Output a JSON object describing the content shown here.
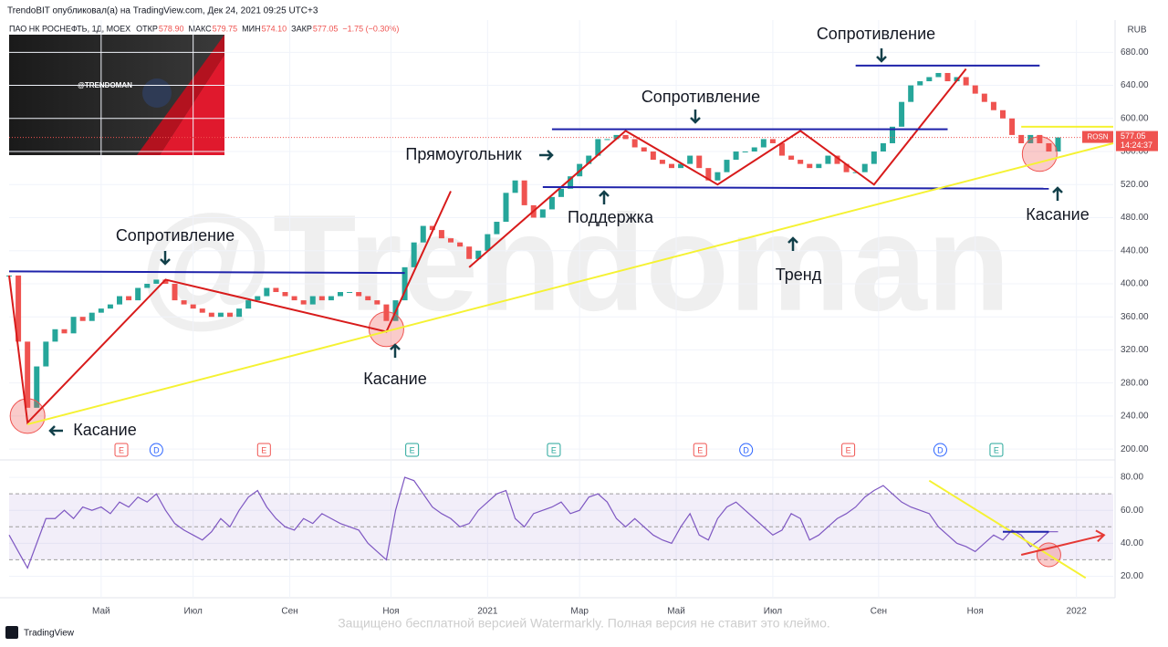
{
  "header": {
    "text": "TrendoBIT опубликовал(а) на TradingView.com, Дек 24, 2021 09:25 UTC+3"
  },
  "legend": {
    "symbol": "ПАО НК РОСНЕФТЬ, 1Д, MOEX",
    "items": [
      {
        "label": "ОТКР",
        "value": "578.90"
      },
      {
        "label": "МАКС",
        "value": "579.75"
      },
      {
        "label": "МИН",
        "value": "574.10"
      },
      {
        "label": "ЗАКР",
        "value": "577.05"
      }
    ],
    "change": "−1.75 (−0.30%)"
  },
  "currency": "RUB",
  "ticker": "ROSN",
  "countdown": "14:24:37",
  "thumbnail": {
    "title": "@TRENDOMAN"
  },
  "watermark": "@Trendoman",
  "footer": {
    "brand": "TradingView",
    "notice": "Защищено бесплатной версией Watermarkly. Полная версия не ставит это клеймо."
  },
  "chart_data": [
    {
      "type": "candlestick",
      "up_color": "#26a69a",
      "down_color": "#ef5350",
      "values": [
        410,
        330,
        250,
        300,
        330,
        345,
        340,
        360,
        355,
        365,
        370,
        375,
        385,
        380,
        395,
        400,
        405,
        400,
        380,
        375,
        370,
        365,
        360,
        365,
        360,
        370,
        380,
        385,
        395,
        390,
        385,
        380,
        375,
        385,
        380,
        385,
        390,
        390,
        385,
        380,
        375,
        355,
        380,
        420,
        450,
        470,
        465,
        455,
        450,
        445,
        430,
        440,
        460,
        475,
        510,
        525,
        495,
        480,
        490,
        505,
        515,
        530,
        545,
        555,
        575,
        575,
        580,
        575,
        565,
        560,
        550,
        545,
        540,
        545,
        555,
        540,
        525,
        535,
        550,
        560,
        560,
        565,
        575,
        570,
        555,
        550,
        545,
        540,
        545,
        555,
        545,
        535,
        535,
        545,
        560,
        570,
        590,
        620,
        640,
        645,
        650,
        655,
        645,
        650,
        640,
        630,
        620,
        610,
        600,
        580,
        570,
        580,
        570,
        560,
        577.05
      ],
      "xlim": [
        0,
        120
      ],
      "ylim": [
        188,
        719
      ],
      "grid": true,
      "xticks": [
        {
          "value": 10,
          "label": "Май"
        },
        {
          "value": 20,
          "label": "Июл"
        },
        {
          "value": 30.5,
          "label": "Сен"
        },
        {
          "value": 41.5,
          "label": "Ноя"
        },
        {
          "value": 52,
          "label": "2021"
        },
        {
          "value": 62,
          "label": "Мар"
        },
        {
          "value": 72.5,
          "label": "Май"
        },
        {
          "value": 83,
          "label": "Июл"
        },
        {
          "value": 94.5,
          "label": "Сен"
        },
        {
          "value": 105,
          "label": "Ноя"
        },
        {
          "value": 116,
          "label": "2022"
        }
      ],
      "yticks": [
        {
          "value": 200,
          "label": "200.00"
        },
        {
          "value": 240,
          "label": "240.00"
        },
        {
          "value": 280,
          "label": "280.00"
        },
        {
          "value": 320,
          "label": "320.00"
        },
        {
          "value": 360,
          "label": "360.00"
        },
        {
          "value": 400,
          "label": "400.00"
        },
        {
          "value": 440,
          "label": "440.00"
        },
        {
          "value": 480,
          "label": "480.00"
        },
        {
          "value": 520,
          "label": "520.00"
        },
        {
          "value": 560,
          "label": "560.00"
        },
        {
          "value": 600,
          "label": "600.00"
        },
        {
          "value": 640,
          "label": "640.00"
        },
        {
          "value": 680,
          "label": "680.00"
        }
      ],
      "drawings": [
        {
          "color": "#1e22aa",
          "x": [
            0,
            43
          ],
          "y": [
            415,
            413
          ]
        },
        {
          "color": "#d81b1b",
          "x": [
            0,
            2,
            17,
            41,
            48
          ],
          "y": [
            410,
            232,
            405,
            342,
            512
          ]
        },
        {
          "color": "#d81b1b",
          "x": [
            50,
            67,
            77,
            86,
            94,
            104
          ],
          "y": [
            420,
            585,
            520,
            585,
            520,
            660
          ]
        },
        {
          "color": "#1e22aa",
          "x": [
            59,
            102
          ],
          "y": [
            587,
            587
          ]
        },
        {
          "color": "#1e22aa",
          "x": [
            58,
            113
          ],
          "y": [
            517,
            515
          ]
        },
        {
          "color": "#1e22aa",
          "x": [
            92,
            112
          ],
          "y": [
            664,
            664
          ]
        },
        {
          "color": "#f5f233",
          "x": [
            2,
            120
          ],
          "y": [
            230,
            570
          ]
        },
        {
          "color": "#f5f233",
          "x": [
            110,
            120
          ],
          "y": [
            590,
            590
          ]
        }
      ],
      "highlights": [
        {
          "x": 2,
          "y": 240
        },
        {
          "x": 41,
          "y": 345
        },
        {
          "x": 112,
          "y": 557
        }
      ],
      "annotations": [
        "Сопротивление",
        "Касание",
        "Касание",
        "Прямоугольник",
        "Сопротивление",
        "Поддержка",
        "Тренд",
        "Сопротивление",
        "Касание"
      ],
      "events": [
        {
          "label": "E",
          "x": 12.2,
          "color": "#ef5350"
        },
        {
          "label": "D",
          "x": 16,
          "color": "#2962ff"
        },
        {
          "label": "E",
          "x": 27.7,
          "color": "#ef5350"
        },
        {
          "label": "E",
          "x": 43.8,
          "color": "#26a69a"
        },
        {
          "label": "E",
          "x": 59.2,
          "color": "#26a69a"
        },
        {
          "label": "E",
          "x": 75.1,
          "color": "#ef5350"
        },
        {
          "label": "D",
          "x": 80.1,
          "color": "#2962ff"
        },
        {
          "label": "E",
          "x": 91.2,
          "color": "#ef5350"
        },
        {
          "label": "D",
          "x": 101.2,
          "color": "#2962ff"
        },
        {
          "label": "E",
          "x": 107.3,
          "color": "#26a69a"
        }
      ]
    },
    {
      "type": "line",
      "color": "#7e57c2",
      "values": [
        45,
        35,
        25,
        40,
        55,
        55,
        60,
        55,
        62,
        60,
        62,
        58,
        65,
        62,
        68,
        65,
        70,
        60,
        52,
        48,
        45,
        42,
        47,
        55,
        50,
        60,
        68,
        72,
        62,
        55,
        50,
        48,
        55,
        52,
        58,
        55,
        52,
        50,
        48,
        40,
        35,
        30,
        60,
        80,
        78,
        70,
        62,
        58,
        55,
        50,
        52,
        60,
        65,
        70,
        72,
        55,
        50,
        58,
        60,
        62,
        65,
        58,
        60,
        68,
        70,
        65,
        55,
        50,
        55,
        50,
        45,
        42,
        40,
        50,
        58,
        45,
        42,
        55,
        62,
        65,
        60,
        55,
        50,
        45,
        48,
        58,
        55,
        42,
        45,
        50,
        55,
        58,
        62,
        68,
        72,
        75,
        70,
        65,
        62,
        60,
        58,
        50,
        45,
        40,
        38,
        35,
        40,
        45,
        42,
        48,
        45,
        38,
        42,
        47,
        47
      ],
      "xlim": [
        0,
        120
      ],
      "ylim": [
        7,
        90
      ],
      "band": [
        30,
        70
      ],
      "levels": [
        30,
        50,
        70
      ],
      "yticks": [
        {
          "value": 20,
          "label": "20.00"
        },
        {
          "value": 40,
          "label": "40.00"
        },
        {
          "value": 60,
          "label": "60.00"
        },
        {
          "value": 80,
          "label": "80.00"
        }
      ],
      "drawings": [
        {
          "color": "#f5f233",
          "x": [
            100,
            117
          ],
          "y": [
            78,
            19
          ]
        },
        {
          "color": "#1e22aa",
          "x": [
            108,
            113
          ],
          "y": [
            47,
            47
          ]
        },
        {
          "color": "#e53935",
          "x": [
            110,
            119
          ],
          "y": [
            33,
            45
          ]
        }
      ],
      "highlights": [
        {
          "x": 113,
          "y": 33
        }
      ]
    }
  ]
}
